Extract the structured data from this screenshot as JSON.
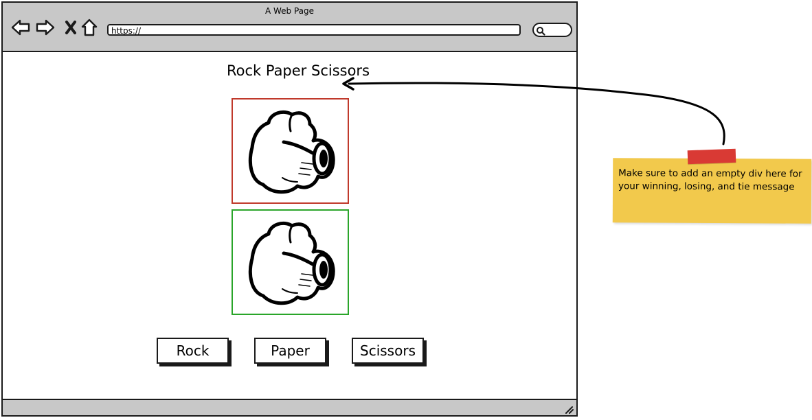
{
  "window": {
    "title": "A Web Page"
  },
  "toolbar": {
    "url": "https://",
    "icons": [
      "back-arrow-icon",
      "forward-arrow-icon",
      "close-x-icon",
      "home-icon",
      "search-icon"
    ]
  },
  "page": {
    "title": "Rock Paper Scissors"
  },
  "images": [
    {
      "name": "fist-icon",
      "border_color": "#c0392b"
    },
    {
      "name": "fist-icon",
      "border_color": "#2aa52a"
    }
  ],
  "buttons": {
    "rock": "Rock",
    "paper": "Paper",
    "scissors": "Scissors"
  },
  "note": {
    "text": "Make sure to add an empty div here for your winning, losing, and tie message",
    "color": "#f2c94c",
    "tape_color": "#d93a34"
  }
}
